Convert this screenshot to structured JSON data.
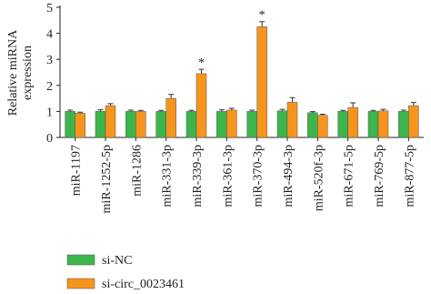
{
  "chart_data": {
    "type": "bar",
    "ylabel": [
      "Relative miRNA",
      "expression"
    ],
    "categories": [
      "miR-1197",
      "miR-1252-5p",
      "miR-1286",
      "miR-331-3p",
      "miR-339-3p",
      "miR-361-3p",
      "miR-370-3p",
      "miR-494-3p",
      "miR-520f-3p",
      "miR-671-5p",
      "miR-769-5p",
      "miR-877-5p"
    ],
    "series": [
      {
        "name": "si-NC",
        "color": "#3cb54a",
        "values": [
          1.0,
          1.0,
          1.0,
          1.0,
          1.0,
          1.0,
          1.0,
          1.02,
          0.95,
          1.0,
          1.0,
          1.0
        ],
        "errors": [
          0.05,
          0.06,
          0.05,
          0.04,
          0.04,
          0.06,
          0.05,
          0.06,
          0.04,
          0.04,
          0.04,
          0.05
        ]
      },
      {
        "name": "si-circ_0023461",
        "color": "#f7941d",
        "values": [
          0.93,
          1.22,
          1.0,
          1.5,
          2.45,
          1.05,
          4.25,
          1.35,
          0.85,
          1.15,
          1.02,
          1.22
        ],
        "errors": [
          0.04,
          0.08,
          0.04,
          0.15,
          0.17,
          0.07,
          0.2,
          0.18,
          0.04,
          0.18,
          0.06,
          0.12
        ]
      }
    ],
    "annotations": [
      {
        "category": "miR-339-3p",
        "text": "*"
      },
      {
        "category": "miR-370-3p",
        "text": "*"
      }
    ],
    "ylim": [
      0,
      5
    ],
    "yticks": [
      0,
      1,
      2,
      3,
      4,
      5
    ],
    "grid": false,
    "legend": "bottom-left"
  }
}
